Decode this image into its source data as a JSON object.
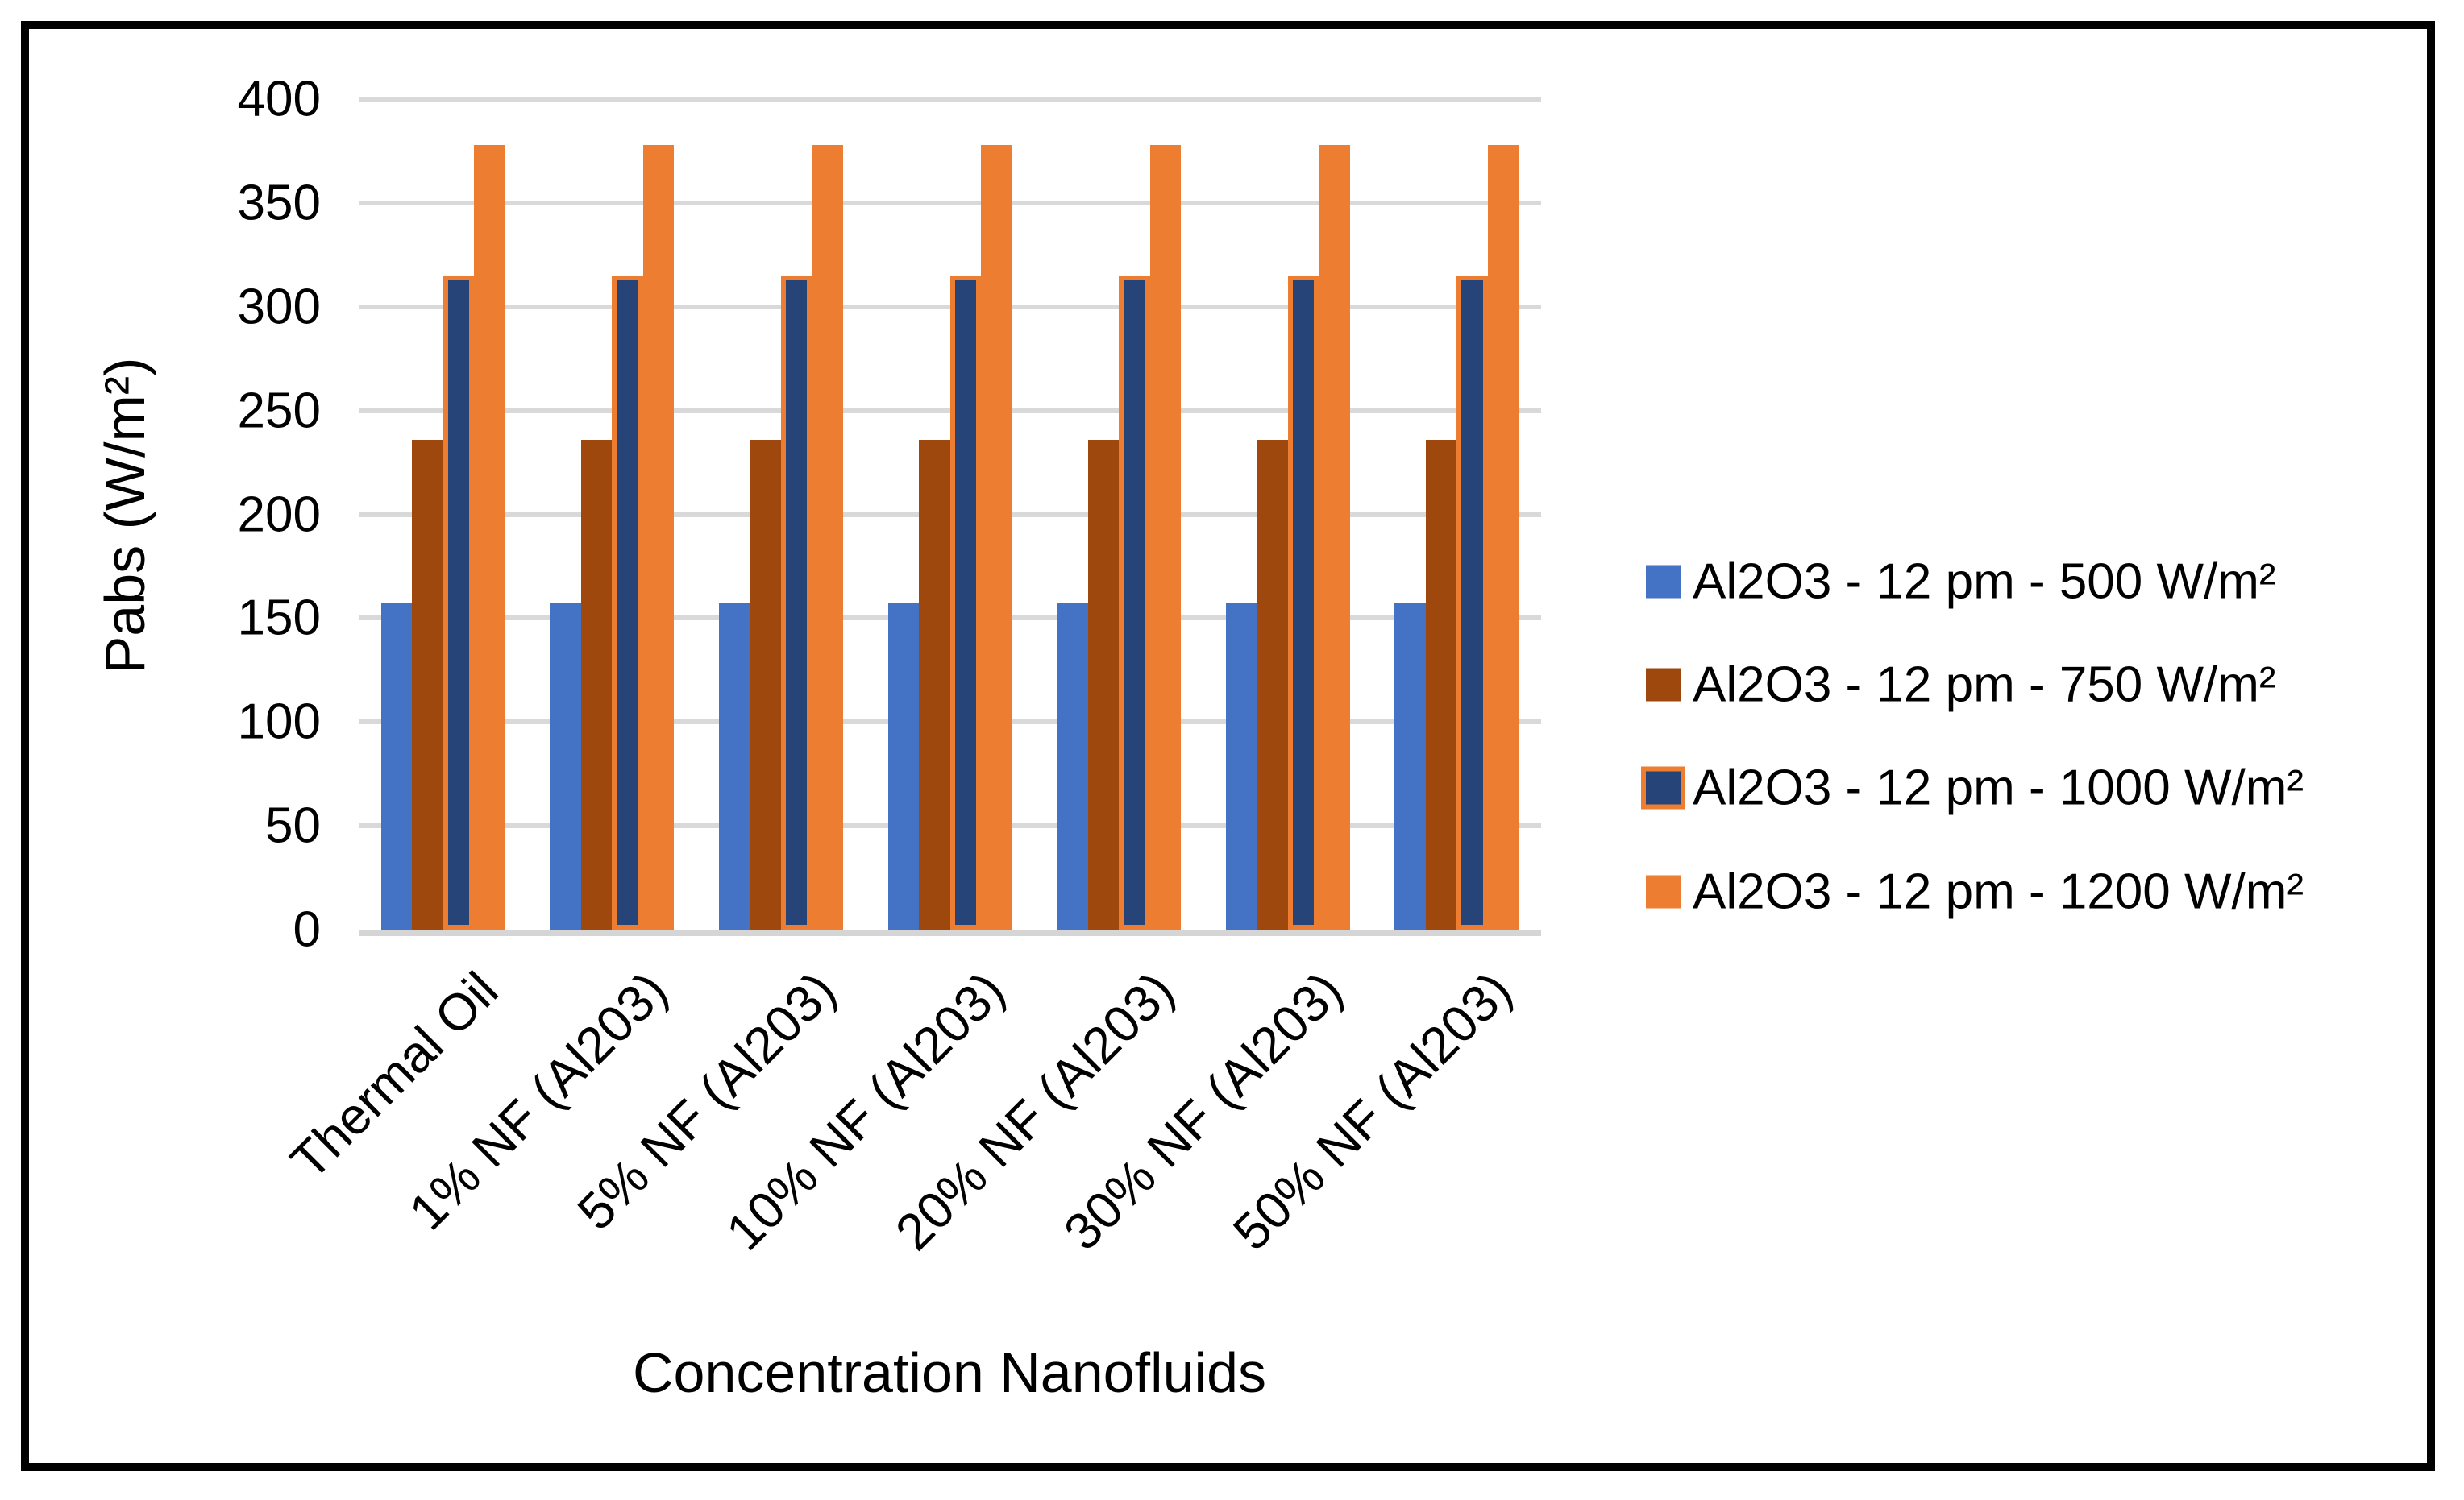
{
  "chart_data": {
    "type": "bar",
    "title": "",
    "xlabel": "Concentration Nanofluids",
    "ylabel": "Pabs (W/m²)",
    "categories": [
      "Thermal Oil",
      "1% NF (Al203)",
      "5% NF (Al203)",
      "10% NF (Al203)",
      "20% NF (Al203)",
      "30% NF (Al203)",
      "50% NF (Al203)"
    ],
    "series": [
      {
        "name": "Al2O3 - 12 pm - 500 W/m²",
        "color": "#4472C4",
        "border": null,
        "values": [
          157,
          157,
          157,
          157,
          157,
          157,
          157
        ]
      },
      {
        "name": "Al2O3 - 12 pm - 750 W/m²",
        "color": "#9E480E",
        "border": null,
        "values": [
          236,
          236,
          236,
          236,
          236,
          236,
          236
        ]
      },
      {
        "name": "Al2O3 - 12 pm - 1000 W/m²",
        "color": "#264478",
        "border": "#ED7D31",
        "values": [
          315,
          315,
          315,
          315,
          315,
          315,
          315
        ]
      },
      {
        "name": "Al2O3 - 12 pm - 1200 W/m²",
        "color": "#ED7D31",
        "border": null,
        "values": [
          378,
          378,
          378,
          378,
          378,
          378,
          378
        ]
      }
    ],
    "ylim": [
      0,
      400
    ],
    "ytick_step": 50,
    "yticks": [
      0,
      50,
      100,
      150,
      200,
      250,
      300,
      350,
      400
    ],
    "grid": "horizontal",
    "gridline_color": "#D9D9D9",
    "axisline_color": "#D5D5D5",
    "legend_position": "right",
    "text_color": "#000000",
    "background": "#FFFFFF",
    "frame_color": "#000000"
  }
}
